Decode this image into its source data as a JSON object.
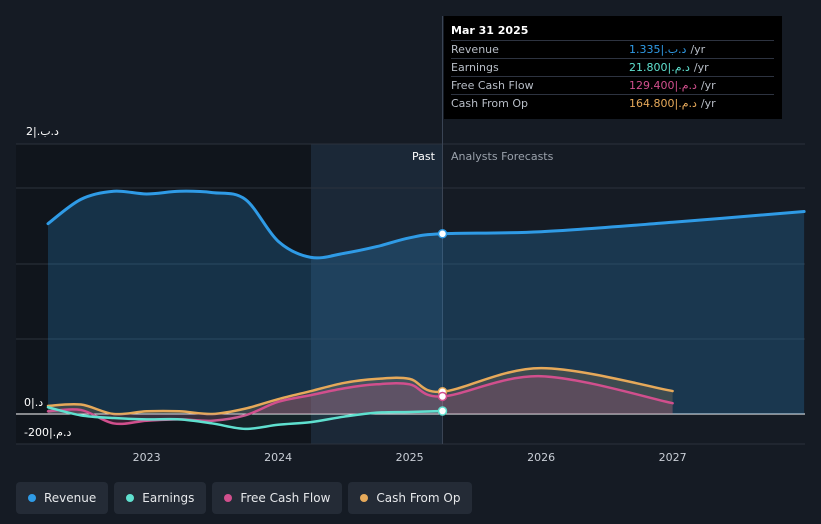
{
  "tooltip": {
    "date": "Mar 31 2025",
    "rows": [
      {
        "label": "Revenue",
        "value": "1.335|.ﺩ.ﺏ",
        "unit": "/yr",
        "color": "#2f9be6"
      },
      {
        "label": "Earnings",
        "value": "21.800|.ﺩ.ﻡ",
        "unit": "/yr",
        "color": "#5fe0cf"
      },
      {
        "label": "Free Cash Flow",
        "value": "129.400|.ﺩ.ﻡ",
        "unit": "/yr",
        "color": "#d14f8d"
      },
      {
        "label": "Cash From Op",
        "value": "164.800|.ﺩ.ﻡ",
        "unit": "/yr",
        "color": "#e6a95a"
      }
    ]
  },
  "regions": {
    "past": "Past",
    "forecast": "Analysts Forecasts"
  },
  "legend": [
    {
      "label": "Revenue",
      "color": "#2f9be6"
    },
    {
      "label": "Earnings",
      "color": "#5fe0cf"
    },
    {
      "label": "Free Cash Flow",
      "color": "#d14f8d"
    },
    {
      "label": "Cash From Op",
      "color": "#e6a95a"
    }
  ],
  "chart_data": {
    "type": "line",
    "y_tick_labels": {
      "top": "2|.ﺩ.ﺏ",
      "zero": "0|.ﺩ",
      "bottom": "-200|.ﺩ.ﻡ"
    },
    "x_tick_labels": [
      "2023",
      "2024",
      "2025",
      "2026",
      "2027"
    ],
    "x_ticks": [
      2023.0,
      2024.0,
      2025.0,
      2026.0,
      2027.0
    ],
    "ylim": [
      -200,
      2000
    ],
    "past_start": 2024.25,
    "forecast_start": 2025.25,
    "series": [
      {
        "name": "Revenue",
        "color": "#2f9be6",
        "x": [
          2022.25,
          2022.5,
          2022.75,
          2023.0,
          2023.25,
          2023.5,
          2023.75,
          2024.0,
          2024.25,
          2024.5,
          2024.75,
          2025.0,
          2025.25,
          2026.0,
          2027.0,
          2028.0
        ],
        "y": [
          1410,
          1590,
          1650,
          1630,
          1650,
          1640,
          1590,
          1280,
          1160,
          1190,
          1240,
          1305,
          1335,
          1350,
          1420,
          1500
        ]
      },
      {
        "name": "Cash From Op",
        "color": "#e6a95a",
        "x": [
          2022.25,
          2022.5,
          2022.75,
          2023.0,
          2023.25,
          2023.5,
          2023.75,
          2024.0,
          2024.25,
          2024.5,
          2024.75,
          2025.0,
          2025.25,
          2026.0,
          2027.0
        ],
        "y": [
          60,
          70,
          0,
          20,
          20,
          0,
          40,
          110,
          170,
          230,
          260,
          260,
          165,
          340,
          170
        ]
      },
      {
        "name": "Free Cash Flow",
        "color": "#d14f8d",
        "x": [
          2022.25,
          2022.5,
          2022.75,
          2023.0,
          2023.25,
          2023.5,
          2023.75,
          2024.0,
          2024.25,
          2024.5,
          2024.75,
          2025.0,
          2025.25,
          2026.0,
          2027.0
        ],
        "y": [
          20,
          30,
          -70,
          -50,
          -40,
          -50,
          -10,
          90,
          140,
          190,
          220,
          220,
          130,
          280,
          80
        ]
      },
      {
        "name": "Earnings",
        "color": "#5fe0cf",
        "x": [
          2022.25,
          2022.5,
          2022.75,
          2023.0,
          2023.25,
          2023.5,
          2023.75,
          2024.0,
          2024.25,
          2024.5,
          2024.75,
          2025.0,
          2025.25
        ],
        "y": [
          50,
          -10,
          -30,
          -40,
          -40,
          -70,
          -110,
          -80,
          -60,
          -20,
          10,
          15,
          22
        ]
      }
    ],
    "markers": [
      {
        "series": "Revenue",
        "x": 2025.25,
        "y": 1335
      },
      {
        "series": "Cash From Op",
        "x": 2025.25,
        "y": 165
      },
      {
        "series": "Free Cash Flow",
        "x": 2025.25,
        "y": 130
      },
      {
        "series": "Earnings",
        "x": 2025.25,
        "y": 22
      }
    ]
  }
}
